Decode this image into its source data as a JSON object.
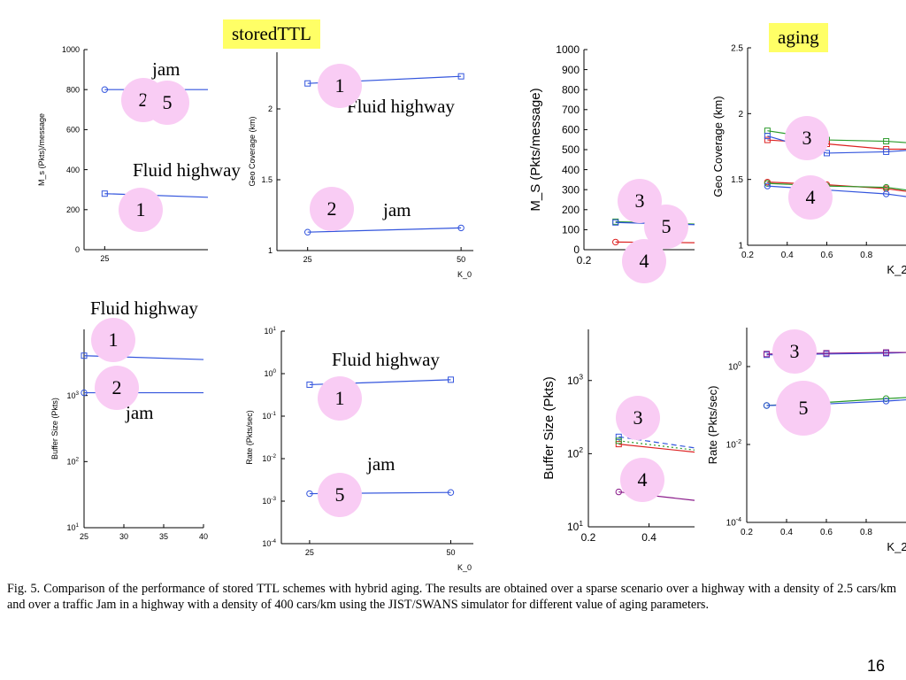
{
  "tags": {
    "stored": "storedTTL",
    "aging": "aging"
  },
  "annotations": {
    "jam_top": "jam",
    "fluid_top_left": "Fluid highway",
    "fluid_top_mid": "Fluid highway",
    "jam_top_mid": "jam",
    "fluid_bottom_left": "Fluid highway",
    "jam_bottom_left": "jam",
    "fluid_bottom_mid": "Fluid highway",
    "jam_bottom_mid": "jam"
  },
  "bubbles": [
    "2",
    "5",
    "1",
    "1",
    "2",
    "3",
    "5",
    "4",
    "3",
    "4",
    "1",
    "2",
    "1",
    "5",
    "3",
    "4",
    "3",
    "5"
  ],
  "caption": "Fig. 5.   Comparison of the performance of stored TTL schemes with hybrid aging. The results are obtained over a sparse scenario over a highway with a density of 2.5 cars/km and over a traffic Jam in a highway with a density of 400 cars/km using the JIST/SWANS simulator for different value of aging parameters.",
  "slide_number": "16",
  "chart_data": [
    {
      "type": "line",
      "ylabel": "M_s (Pkts)/message",
      "xlabel": "",
      "xlim": [
        20,
        50
      ],
      "ylim": [
        0,
        1000
      ],
      "yscale": "linear",
      "xticks": [
        25
      ],
      "yticks": [
        0,
        200,
        400,
        600,
        800,
        1000
      ],
      "series": [
        {
          "color": "#3355dd",
          "marker": "circle",
          "x": [
            25,
            50
          ],
          "y": [
            800,
            800
          ]
        },
        {
          "color": "#3355dd",
          "marker": "square",
          "x": [
            25,
            50
          ],
          "y": [
            280,
            262
          ]
        }
      ]
    },
    {
      "type": "line",
      "ylabel": "Geo Coverage (km)",
      "xlabel": "K_0",
      "xlim": [
        20,
        52
      ],
      "ylim": [
        1,
        2.4
      ],
      "yscale": "linear",
      "xticks": [
        25,
        50
      ],
      "yticks": [
        1,
        1.5,
        2
      ],
      "series": [
        {
          "color": "#3355dd",
          "marker": "square",
          "x": [
            25,
            50
          ],
          "y": [
            2.18,
            2.23
          ]
        },
        {
          "color": "#3355dd",
          "marker": "circle",
          "x": [
            25,
            50
          ],
          "y": [
            1.13,
            1.16
          ]
        }
      ]
    },
    {
      "type": "line",
      "ylabel": "M_S  (Pkts/message)",
      "xlabel": "",
      "xlim": [
        0.2,
        0.55
      ],
      "ylim": [
        0,
        1000
      ],
      "yscale": "linear",
      "xticks": [
        0.2
      ],
      "yticks": [
        0,
        100,
        200,
        300,
        400,
        500,
        600,
        700,
        800,
        900,
        1000
      ],
      "series": [
        {
          "color": "#2b9b2b",
          "marker": "square",
          "x": [
            0.3,
            0.55
          ],
          "y": [
            140,
            128
          ]
        },
        {
          "color": "#3355dd",
          "marker": "square",
          "x": [
            0.3,
            0.55
          ],
          "y": [
            136,
            125
          ]
        },
        {
          "color": "#dd2222",
          "marker": "circle",
          "x": [
            0.3,
            0.55
          ],
          "y": [
            38,
            35
          ]
        }
      ]
    },
    {
      "type": "line",
      "ylabel": "Geo Coverage (km)",
      "xlabel": "K_2",
      "xlim": [
        0.2,
        1.0
      ],
      "ylim": [
        1,
        2.5
      ],
      "yscale": "linear",
      "xticks": [
        0.2,
        0.4,
        0.6,
        0.8
      ],
      "yticks": [
        1,
        1.5,
        2,
        2.5
      ],
      "series": [
        {
          "color": "#2b9b2b",
          "marker": "square",
          "x": [
            0.3,
            0.6,
            0.9,
            1.0
          ],
          "y": [
            1.87,
            1.8,
            1.79,
            1.78
          ]
        },
        {
          "color": "#dd2222",
          "marker": "square",
          "x": [
            0.3,
            0.6,
            0.9,
            1.0
          ],
          "y": [
            1.8,
            1.77,
            1.73,
            1.73
          ]
        },
        {
          "color": "#3355dd",
          "marker": "square",
          "x": [
            0.3,
            0.6,
            0.9,
            1.0
          ],
          "y": [
            1.83,
            1.7,
            1.71,
            1.72
          ]
        },
        {
          "color": "#dd2222",
          "marker": "circle",
          "x": [
            0.3,
            0.6,
            0.9,
            1.0
          ],
          "y": [
            1.48,
            1.46,
            1.43,
            1.41
          ]
        },
        {
          "color": "#2b9b2b",
          "marker": "circle",
          "x": [
            0.3,
            0.6,
            0.9,
            1.0
          ],
          "y": [
            1.47,
            1.45,
            1.44,
            1.42
          ]
        },
        {
          "color": "#3355dd",
          "marker": "circle",
          "x": [
            0.3,
            0.6,
            0.9,
            1.0
          ],
          "y": [
            1.45,
            1.42,
            1.39,
            1.37
          ]
        }
      ]
    },
    {
      "type": "line",
      "ylabel": "Buffer Size (Pkts)",
      "xlabel": "",
      "xlim": [
        25,
        40
      ],
      "ylim": [
        10,
        10000
      ],
      "yscale": "log",
      "xticks": [
        25,
        30,
        35,
        40
      ],
      "yticks": [
        10,
        100,
        1000
      ],
      "series": [
        {
          "color": "#3355dd",
          "marker": "square",
          "x": [
            25,
            40
          ],
          "y": [
            4000,
            3500
          ]
        },
        {
          "color": "#3355dd",
          "marker": "circle",
          "x": [
            25,
            40
          ],
          "y": [
            1100,
            1100
          ]
        }
      ]
    },
    {
      "type": "line",
      "ylabel": "Rate (Pkts/sec)",
      "xlabel": "K_0",
      "xlim": [
        20,
        54
      ],
      "ylim": [
        0.0001,
        10
      ],
      "yscale": "log",
      "xticks": [
        25,
        50
      ],
      "yticks": [
        0.0001,
        0.001,
        0.01,
        0.1,
        1,
        10
      ],
      "series": [
        {
          "color": "#3355dd",
          "marker": "square",
          "x": [
            25,
            50
          ],
          "y": [
            0.55,
            0.72
          ]
        },
        {
          "color": "#3355dd",
          "marker": "circle",
          "x": [
            25,
            50
          ],
          "y": [
            0.0015,
            0.0016
          ]
        }
      ]
    },
    {
      "type": "line",
      "ylabel": "Buffer Size (Pkts)",
      "xlabel": "",
      "xlim": [
        0.2,
        0.55
      ],
      "ylim": [
        10,
        5000
      ],
      "yscale": "log",
      "xticks": [
        0.2,
        0.4
      ],
      "yticks": [
        10,
        100,
        1000
      ],
      "series": [
        {
          "color": "#3355dd",
          "marker": "square",
          "x": [
            0.3,
            0.55
          ],
          "y": [
            170,
            120
          ],
          "dashed": true
        },
        {
          "color": "#dd2222",
          "marker": "square",
          "x": [
            0.3,
            0.55
          ],
          "y": [
            135,
            105
          ]
        },
        {
          "color": "#2b9b2b",
          "marker": "square",
          "x": [
            0.3,
            0.55
          ],
          "y": [
            150,
            112
          ],
          "dotted": true
        },
        {
          "color": "#8a1a8a",
          "marker": "circle",
          "x": [
            0.3,
            0.55
          ],
          "y": [
            30,
            23
          ]
        }
      ]
    },
    {
      "type": "line",
      "ylabel": "Rate (Pkts/sec)",
      "xlabel": "K_2",
      "xlim": [
        0.2,
        1.0
      ],
      "ylim": [
        0.0001,
        10
      ],
      "yscale": "log",
      "xticks": [
        0.2,
        0.4,
        0.6,
        0.8
      ],
      "yticks": [
        0.0001,
        0.01,
        1
      ],
      "series": [
        {
          "color": "#3355dd",
          "marker": "square",
          "x": [
            0.3,
            0.6,
            0.9,
            1.0
          ],
          "y": [
            2.0,
            2.1,
            2.2,
            2.3
          ]
        },
        {
          "color": "#8a1a8a",
          "marker": "square",
          "x": [
            0.3,
            0.6,
            0.9,
            1.0
          ],
          "y": [
            2.1,
            2.2,
            2.3,
            2.3
          ]
        },
        {
          "color": "#2b9b2b",
          "marker": "circle",
          "x": [
            0.3,
            0.6,
            0.9,
            1.0
          ],
          "y": [
            0.1,
            0.12,
            0.15,
            0.16
          ]
        },
        {
          "color": "#3355dd",
          "marker": "circle",
          "x": [
            0.3,
            0.6,
            0.9,
            1.0
          ],
          "y": [
            0.1,
            0.11,
            0.13,
            0.14
          ]
        }
      ]
    }
  ]
}
